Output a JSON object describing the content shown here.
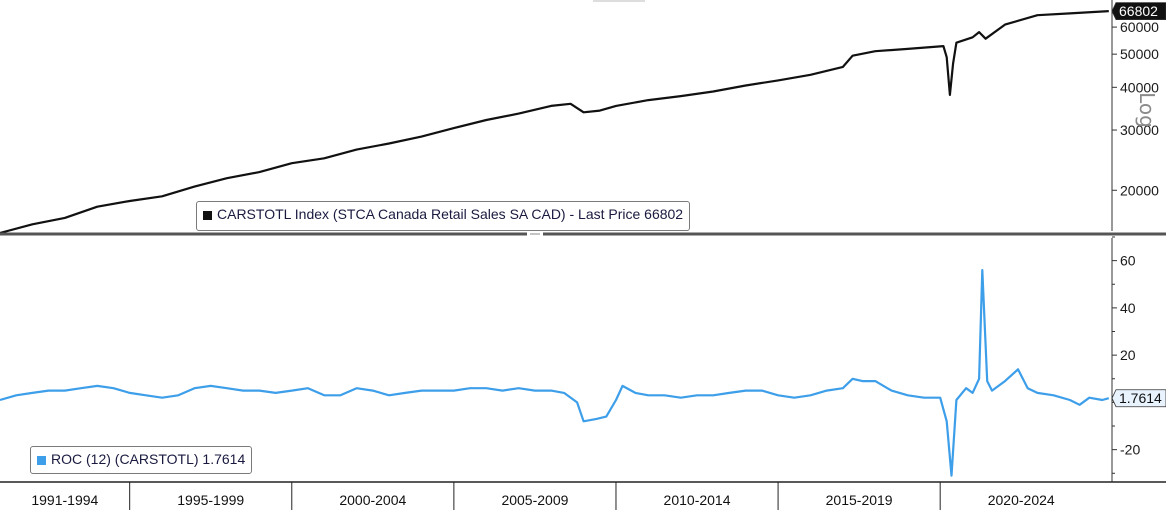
{
  "chart_data": [
    {
      "type": "line",
      "panel": "top",
      "yscale": "log",
      "ylim": [
        15000,
        72000
      ],
      "ylabel": "Log",
      "yticks": [
        20000,
        30000,
        40000,
        50000,
        60000
      ],
      "last_value_label": "66802",
      "legend": {
        "text": "CARSTOTL Index (STCA Canada Retail Sales SA CAD) - Last Price 66802",
        "placement": "bottom-left"
      },
      "series": [
        {
          "color": "#111111",
          "points": [
            [
              1991.0,
              15000
            ],
            [
              1992.0,
              15900
            ],
            [
              1993.0,
              16600
            ],
            [
              1994.0,
              17900
            ],
            [
              1995.0,
              18600
            ],
            [
              1996.0,
              19200
            ],
            [
              1997.0,
              20500
            ],
            [
              1998.0,
              21700
            ],
            [
              1999.0,
              22600
            ],
            [
              2000.0,
              24000
            ],
            [
              2001.0,
              24800
            ],
            [
              2002.0,
              26300
            ],
            [
              2003.0,
              27400
            ],
            [
              2004.0,
              28700
            ],
            [
              2005.0,
              30400
            ],
            [
              2006.0,
              32100
            ],
            [
              2007.0,
              33500
            ],
            [
              2008.0,
              35300
            ],
            [
              2008.6,
              35800
            ],
            [
              2009.0,
              33800
            ],
            [
              2009.5,
              34200
            ],
            [
              2010.0,
              35300
            ],
            [
              2011.0,
              36700
            ],
            [
              2012.0,
              37700
            ],
            [
              2013.0,
              38900
            ],
            [
              2014.0,
              40500
            ],
            [
              2015.0,
              41900
            ],
            [
              2016.0,
              43500
            ],
            [
              2017.0,
              45900
            ],
            [
              2017.3,
              49500
            ],
            [
              2018.0,
              51000
            ],
            [
              2019.0,
              51800
            ],
            [
              2019.9,
              52600
            ],
            [
              2020.1,
              52800
            ],
            [
              2020.2,
              49000
            ],
            [
              2020.3,
              38000
            ],
            [
              2020.4,
              47000
            ],
            [
              2020.5,
              54000
            ],
            [
              2021.0,
              56000
            ],
            [
              2021.2,
              58000
            ],
            [
              2021.4,
              55500
            ],
            [
              2022.0,
              61000
            ],
            [
              2023.0,
              65000
            ],
            [
              2024.0,
              65800
            ],
            [
              2025.2,
              66802
            ]
          ]
        }
      ]
    },
    {
      "type": "line",
      "panel": "bottom",
      "ylim": [
        -32,
        70
      ],
      "yticks": [
        -20,
        20,
        40,
        60
      ],
      "last_value_label": "1.7614",
      "legend": {
        "text": "ROC (12) (CARSTOTL) 1.7614",
        "placement": "bottom-left"
      },
      "series": [
        {
          "color": "#3d9ee9",
          "points": [
            [
              1991.0,
              1
            ],
            [
              1991.5,
              3
            ],
            [
              1992.0,
              4
            ],
            [
              1992.5,
              5
            ],
            [
              1993.0,
              5
            ],
            [
              1993.5,
              6
            ],
            [
              1994.0,
              7
            ],
            [
              1994.5,
              6
            ],
            [
              1995.0,
              4
            ],
            [
              1995.5,
              3
            ],
            [
              1996.0,
              2
            ],
            [
              1996.5,
              3
            ],
            [
              1997.0,
              6
            ],
            [
              1997.5,
              7
            ],
            [
              1998.0,
              6
            ],
            [
              1998.5,
              5
            ],
            [
              1999.0,
              5
            ],
            [
              1999.5,
              4
            ],
            [
              2000.0,
              5
            ],
            [
              2000.5,
              6
            ],
            [
              2001.0,
              3
            ],
            [
              2001.5,
              3
            ],
            [
              2002.0,
              6
            ],
            [
              2002.5,
              5
            ],
            [
              2003.0,
              3
            ],
            [
              2003.5,
              4
            ],
            [
              2004.0,
              5
            ],
            [
              2004.5,
              5
            ],
            [
              2005.0,
              5
            ],
            [
              2005.5,
              6
            ],
            [
              2006.0,
              6
            ],
            [
              2006.5,
              5
            ],
            [
              2007.0,
              6
            ],
            [
              2007.5,
              5
            ],
            [
              2008.0,
              5
            ],
            [
              2008.4,
              4
            ],
            [
              2008.8,
              0
            ],
            [
              2009.0,
              -8
            ],
            [
              2009.4,
              -7
            ],
            [
              2009.7,
              -6
            ],
            [
              2010.0,
              1
            ],
            [
              2010.2,
              7
            ],
            [
              2010.6,
              4
            ],
            [
              2011.0,
              3
            ],
            [
              2011.5,
              3
            ],
            [
              2012.0,
              2
            ],
            [
              2012.5,
              3
            ],
            [
              2013.0,
              3
            ],
            [
              2013.5,
              4
            ],
            [
              2014.0,
              5
            ],
            [
              2014.5,
              5
            ],
            [
              2015.0,
              3
            ],
            [
              2015.5,
              2
            ],
            [
              2016.0,
              3
            ],
            [
              2016.5,
              5
            ],
            [
              2017.0,
              6
            ],
            [
              2017.3,
              10
            ],
            [
              2017.6,
              9
            ],
            [
              2018.0,
              9
            ],
            [
              2018.5,
              5
            ],
            [
              2019.0,
              3
            ],
            [
              2019.5,
              2
            ],
            [
              2020.0,
              2
            ],
            [
              2020.2,
              -8
            ],
            [
              2020.35,
              -31
            ],
            [
              2020.5,
              1
            ],
            [
              2020.8,
              6
            ],
            [
              2021.0,
              4
            ],
            [
              2021.2,
              10
            ],
            [
              2021.3,
              56
            ],
            [
              2021.45,
              9
            ],
            [
              2021.6,
              5
            ],
            [
              2022.0,
              9
            ],
            [
              2022.4,
              14
            ],
            [
              2022.7,
              6
            ],
            [
              2023.0,
              4
            ],
            [
              2023.5,
              3
            ],
            [
              2024.0,
              1
            ],
            [
              2024.3,
              -1
            ],
            [
              2024.6,
              2
            ],
            [
              2025.0,
              1
            ],
            [
              2025.2,
              1.7614
            ]
          ]
        }
      ]
    }
  ],
  "x_axis": {
    "range": [
      1991,
      2025.3
    ],
    "periods": [
      {
        "label": "1991-1994",
        "start": 1991,
        "end": 1995
      },
      {
        "label": "1995-1999",
        "start": 1995,
        "end": 2000
      },
      {
        "label": "2000-2004",
        "start": 2000,
        "end": 2005
      },
      {
        "label": "2005-2009",
        "start": 2005,
        "end": 2010
      },
      {
        "label": "2010-2014",
        "start": 2010,
        "end": 2015
      },
      {
        "label": "2015-2019",
        "start": 2015,
        "end": 2020
      },
      {
        "label": "2020-2024",
        "start": 2020,
        "end": 2025
      }
    ]
  },
  "colors": {
    "top_line": "#111111",
    "bottom_line": "#3d9ee9",
    "background": "#ffffff"
  }
}
